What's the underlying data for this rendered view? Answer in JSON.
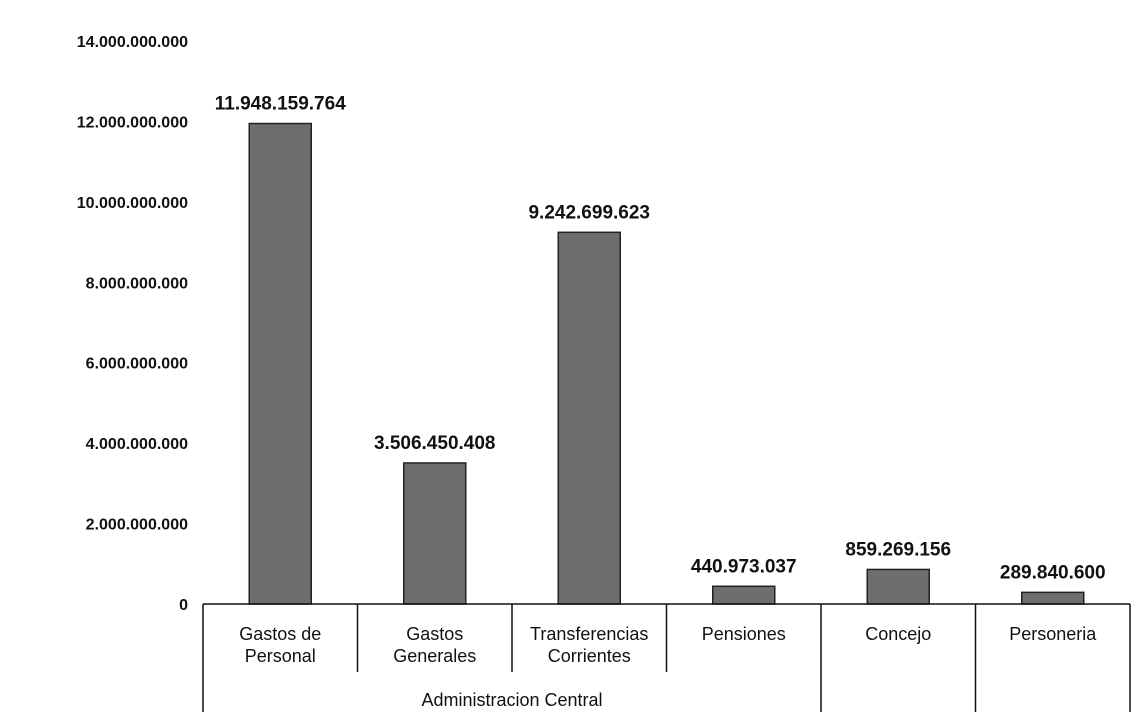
{
  "chart_data": {
    "type": "bar",
    "categories": [
      [
        "Gastos de",
        "Personal"
      ],
      [
        "Gastos",
        "Generales"
      ],
      [
        "Transferencias",
        "Corrientes"
      ],
      [
        "Pensiones"
      ],
      [
        "Concejo"
      ],
      [
        "Personeria"
      ]
    ],
    "values": [
      11948159764,
      3506450408,
      9242699623,
      440973037,
      859269156,
      289840600
    ],
    "data_labels": [
      "11.948.159.764",
      "3.506.450.408",
      "9.242.699.623",
      "440.973.037",
      "859.269.156",
      "289.840.600"
    ],
    "groups": [
      {
        "label": "Administracion Central",
        "categories": [
          0,
          1,
          2,
          3
        ]
      },
      {
        "label": "",
        "categories": [
          4
        ]
      },
      {
        "label": "",
        "categories": [
          5
        ]
      }
    ],
    "y_ticks": [
      {
        "value": 0,
        "label": "0"
      },
      {
        "value": 2000000000,
        "label": "2.000.000.000"
      },
      {
        "value": 4000000000,
        "label": "4.000.000.000"
      },
      {
        "value": 6000000000,
        "label": "6.000.000.000"
      },
      {
        "value": 8000000000,
        "label": "8.000.000.000"
      },
      {
        "value": 10000000000,
        "label": "10.000.000.000"
      },
      {
        "value": 12000000000,
        "label": "12.000.000.000"
      },
      {
        "value": 14000000000,
        "label": "14.000.000.000"
      }
    ],
    "ylim": [
      0,
      14000000000
    ],
    "grid": false,
    "legend": "none",
    "title": "",
    "xlabel": "",
    "ylabel": "",
    "bar_color": "#6e6e6e"
  }
}
